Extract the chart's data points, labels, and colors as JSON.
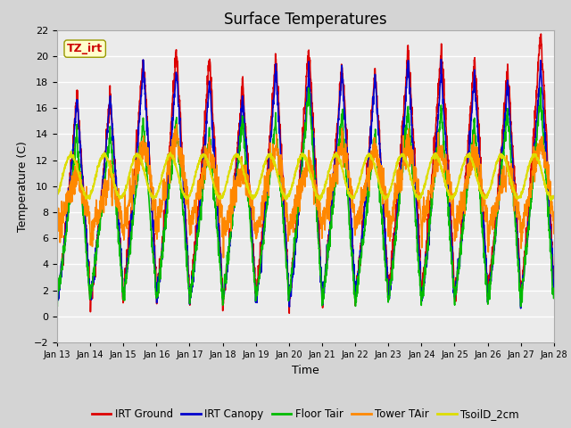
{
  "title": "Surface Temperatures",
  "xlabel": "Time",
  "ylabel": "Temperature (C)",
  "ylim": [
    -2,
    22
  ],
  "yticks": [
    -2,
    0,
    2,
    4,
    6,
    8,
    10,
    12,
    14,
    16,
    18,
    20,
    22
  ],
  "n_days": 15,
  "xtick_labels": [
    "Jan 13",
    "Jan 14",
    "Jan 15",
    "Jan 16",
    "Jan 17",
    "Jan 18",
    "Jan 19",
    "Jan 20",
    "Jan 21",
    "Jan 22",
    "Jan 23",
    "Jan 24",
    "Jan 25",
    "Jan 26",
    "Jan 27",
    "Jan 28"
  ],
  "series": {
    "IRT Ground": {
      "color": "#dd0000",
      "lw": 1.2
    },
    "IRT Canopy": {
      "color": "#0000cc",
      "lw": 1.2
    },
    "Floor Tair": {
      "color": "#00bb00",
      "lw": 1.2
    },
    "Tower TAir": {
      "color": "#ff8800",
      "lw": 1.2
    },
    "TsoilD_2cm": {
      "color": "#dddd00",
      "lw": 1.5
    }
  },
  "annotation_text": "TZ_irt",
  "annotation_color": "#cc0000",
  "annotation_bg": "#ffffcc",
  "annotation_border": "#999900",
  "fig_bg_color": "#d4d4d4",
  "ax_bg_color": "#ebebeb"
}
